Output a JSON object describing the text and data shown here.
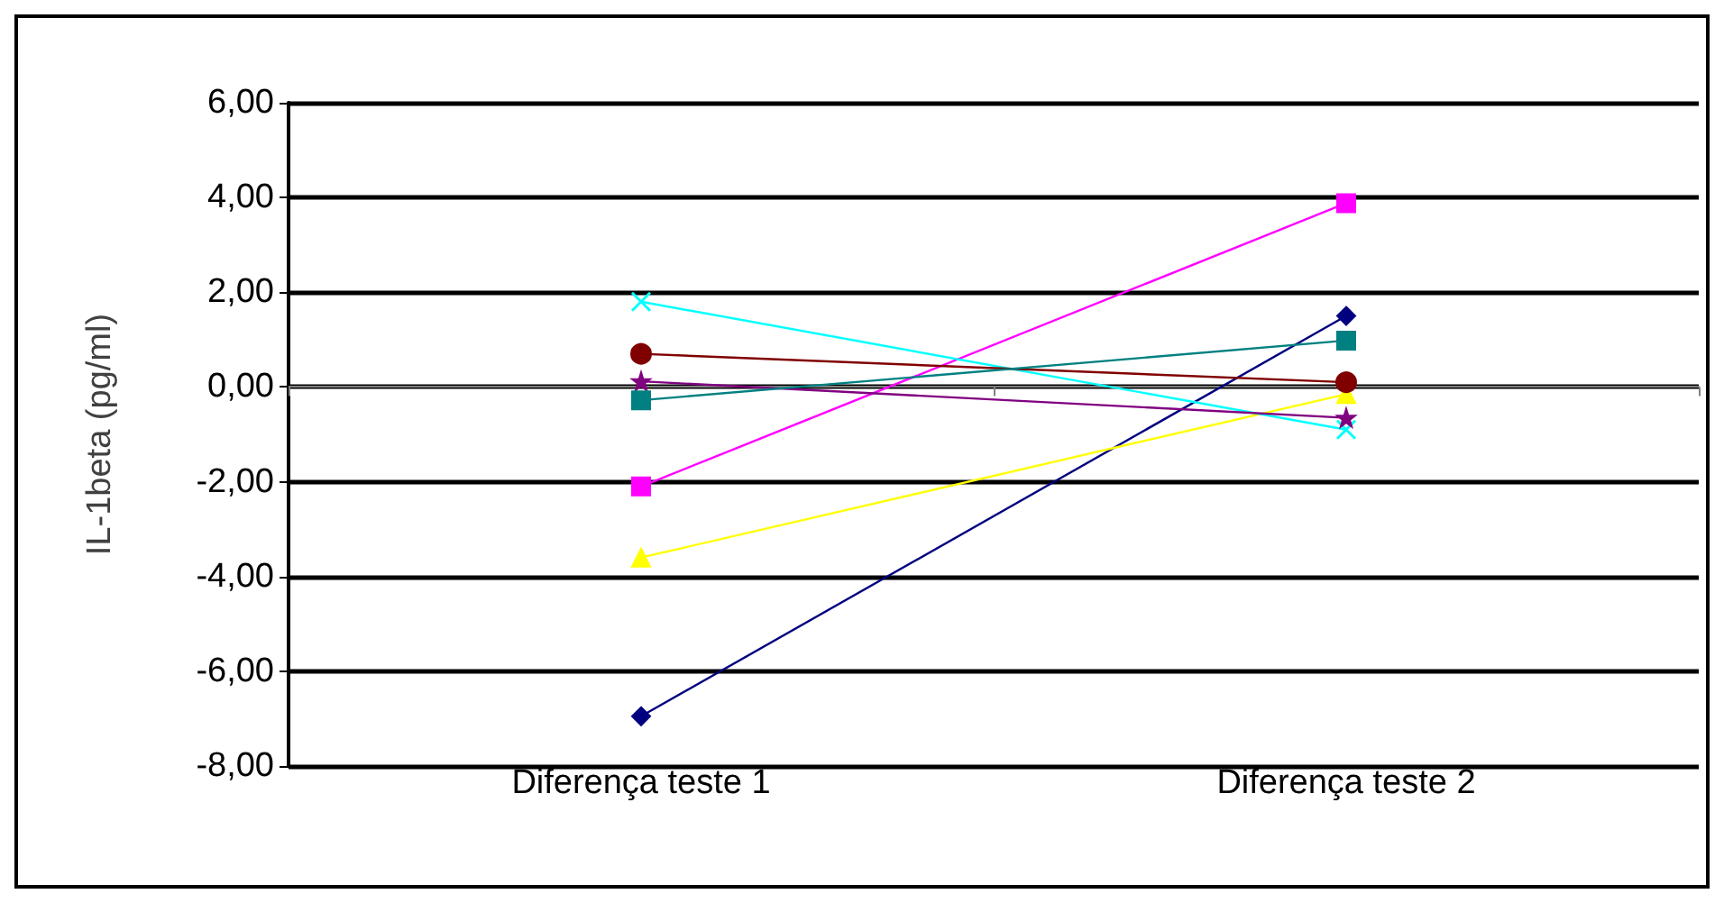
{
  "chart_data": {
    "type": "line",
    "ylabel": "IL-1beta (pg/ml)",
    "categories": [
      "Diferença teste 1",
      "Diferença teste 2"
    ],
    "series": [
      {
        "color": "#000080",
        "marker": "diamond",
        "values": [
          -6.95,
          1.5
        ]
      },
      {
        "color": "#ff00ff",
        "marker": "square",
        "values": [
          -2.1,
          3.88
        ]
      },
      {
        "color": "#ffff00",
        "marker": "triangle",
        "values": [
          -3.6,
          -0.15
        ]
      },
      {
        "color": "#00ffff",
        "marker": "cross",
        "values": [
          1.8,
          -0.9
        ]
      },
      {
        "color": "#800000",
        "marker": "circle",
        "values": [
          0.7,
          0.1
        ]
      },
      {
        "color": "#800080",
        "marker": "star",
        "values": [
          0.12,
          -0.65
        ]
      },
      {
        "color": "#008080",
        "marker": "square",
        "values": [
          -0.28,
          0.98
        ]
      }
    ],
    "ylim": [
      -8,
      6
    ],
    "yticks": [
      {
        "value": -8,
        "label": "-8,00"
      },
      {
        "value": -6,
        "label": "-6,00"
      },
      {
        "value": -4,
        "label": "-4,00"
      },
      {
        "value": -2,
        "label": "-2,00"
      },
      {
        "value": 0,
        "label": "0,00"
      },
      {
        "value": 2,
        "label": "2,00"
      },
      {
        "value": 4,
        "label": "4,00"
      },
      {
        "value": 6,
        "label": "6,00"
      }
    ],
    "grid": "y"
  }
}
